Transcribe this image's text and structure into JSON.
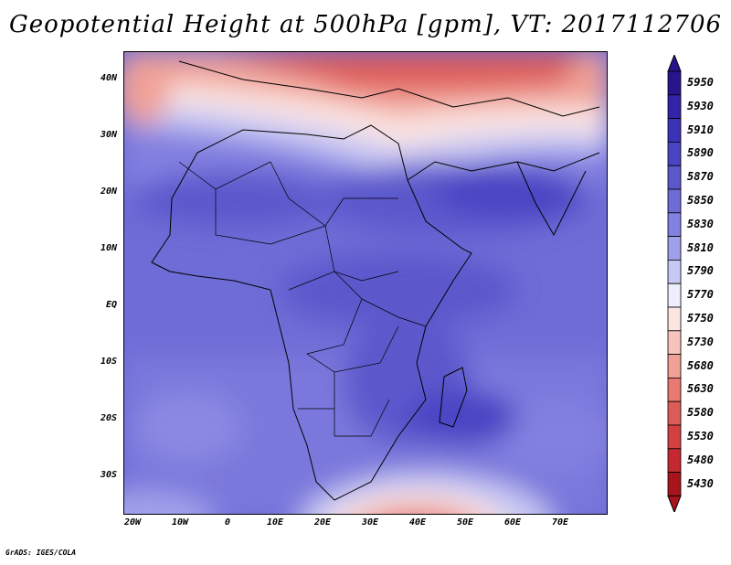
{
  "title": "Geopotential Height at 500hPa [gpm], VT: 2017112706",
  "credit": "GrADS: IGES/COLA",
  "lat_labels": [
    "40N",
    "30N",
    "20N",
    "10N",
    "EQ",
    "10S",
    "20S",
    "30S"
  ],
  "lon_labels": [
    "20W",
    "10W",
    "0",
    "10E",
    "20E",
    "30E",
    "40E",
    "50E",
    "60E",
    "70E"
  ],
  "colorbar": {
    "levels": [
      "5950",
      "5930",
      "5910",
      "5890",
      "5870",
      "5850",
      "5830",
      "5810",
      "5790",
      "5770",
      "5750",
      "5730",
      "5680",
      "5630",
      "5580",
      "5530",
      "5480",
      "5430"
    ],
    "colors": [
      "#28148c",
      "#3223a8",
      "#3c32b8",
      "#4a44c4",
      "#5c58cc",
      "#6e6cd6",
      "#8280e0",
      "#a0a0ea",
      "#c8c8f4",
      "#eeeefc",
      "#fce6e2",
      "#f6c4bc",
      "#f0a096",
      "#e87a72",
      "#de5c58",
      "#d44040",
      "#c42830",
      "#a8141c"
    ]
  }
}
